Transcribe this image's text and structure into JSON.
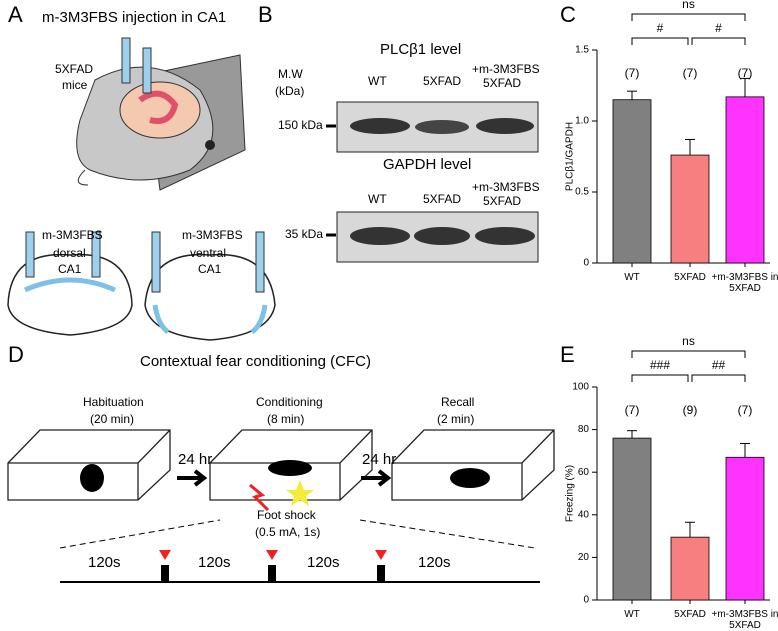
{
  "panel_labels": [
    "A",
    "B",
    "C",
    "D",
    "E"
  ],
  "panel_a": {
    "title": "m-3M3FBS injection in CA1",
    "mouse_label": [
      "5XFAD",
      "mice"
    ],
    "dorsal": [
      "m-3M3FBS",
      "dorsal",
      "CA1"
    ],
    "ventral": [
      "m-3M3FBS",
      "ventral",
      "CA1"
    ]
  },
  "panel_b": {
    "mw_label": [
      "M.W",
      "(kDa)"
    ],
    "blots": [
      {
        "title": "PLCβ1 level",
        "marker": "150 kDa",
        "lanes": [
          "WT",
          "5XFAD"
        ],
        "treated_lane": [
          "+m-3M3FBS",
          "5XFAD"
        ]
      },
      {
        "title": "GAPDH level",
        "marker": "35 kDa",
        "lanes": [
          "WT",
          "5XFAD"
        ],
        "treated_lane": [
          "+m-3M3FBS",
          "5XFAD"
        ]
      }
    ]
  },
  "panel_d": {
    "title": "Contextual fear conditioning (CFC)",
    "stages": [
      {
        "name": "Habituation",
        "duration": "(20 min)"
      },
      {
        "name": "Conditioning",
        "duration": "(8 min)"
      },
      {
        "name": "Recall",
        "duration": "(2 min)"
      }
    ],
    "intervals": [
      "24 hr",
      "24 hr"
    ],
    "shock": [
      "Foot shock",
      "(0.5 mA, 1s)"
    ],
    "timeline": [
      "120s",
      "120s",
      "120s",
      "120s"
    ]
  },
  "chart_data": [
    {
      "type": "bar",
      "y_label": "PLCβ1/GAPDH",
      "categories": [
        "WT",
        "5XFAD",
        "+m-3M3FBS in 5XFAD"
      ],
      "values": [
        1.15,
        0.76,
        1.17
      ],
      "errors": [
        0.06,
        0.11,
        0.13
      ],
      "colors": [
        "#808080",
        "#f77f7f",
        "#ff33ff"
      ],
      "ylim": [
        0,
        1.5
      ],
      "yticks": [
        0,
        0.5,
        {
          "value": 1,
          "label": "1.0"
        },
        1.5
      ],
      "n_labels": [
        "(7)",
        "(7)",
        "(7)"
      ],
      "significance": [
        "#",
        "#",
        "ns"
      ]
    },
    {
      "type": "bar",
      "y_label": "Freezing (%)",
      "categories": [
        "WT",
        "5XFAD",
        "+m-3M3FBS in 5XFAD"
      ],
      "values": [
        76,
        29.5,
        67
      ],
      "errors": [
        3.5,
        7,
        6.5
      ],
      "colors": [
        "#808080",
        "#f77f7f",
        "#ff33ff"
      ],
      "ylim": [
        0,
        100
      ],
      "yticks": [
        0,
        20,
        40,
        60,
        80,
        100
      ],
      "n_labels": [
        "(7)",
        "(9)",
        "(7)"
      ],
      "significance": [
        "###",
        "##",
        "ns"
      ]
    }
  ]
}
